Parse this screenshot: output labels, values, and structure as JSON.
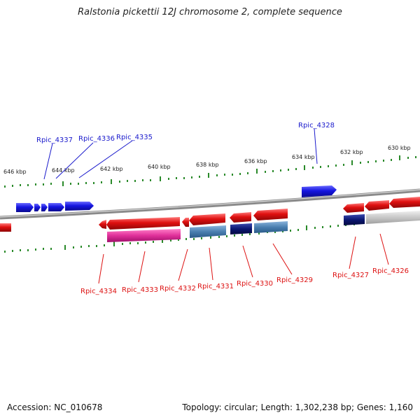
{
  "title": "Ralstonia pickettii 12J chromosome 2, complete sequence",
  "footer": {
    "accession": "Accession: NC_010678",
    "summary": "Topology: circular; Length: 1,302,238 bp; Genes: 1,160"
  },
  "ticks": [
    "646 kbp",
    "644 kbp",
    "642 kbp",
    "640 kbp",
    "638 kbp",
    "636 kbp",
    "634 kbp",
    "632 kbp",
    "630 kbp"
  ],
  "top_labels": [
    "Rpic_4337",
    "Rpic_4336",
    "Rpic_4335",
    "Rpic_4328"
  ],
  "bottom_labels": [
    "Rpic_4334",
    "Rpic_4333",
    "Rpic_4332",
    "Rpic_4331",
    "Rpic_4330",
    "Rpic_4329",
    "Rpic_4327",
    "Rpic_4326"
  ],
  "colors": {
    "forward_gene": "#1515e0",
    "reverse_gene": "#e01010",
    "backbone": "#8a8a8a",
    "tick": "#2a8a2a",
    "magenta": "#e0309a",
    "steelblue": "#4a7fb0",
    "navy": "#0a1670",
    "grey": "#c8c8c8"
  }
}
